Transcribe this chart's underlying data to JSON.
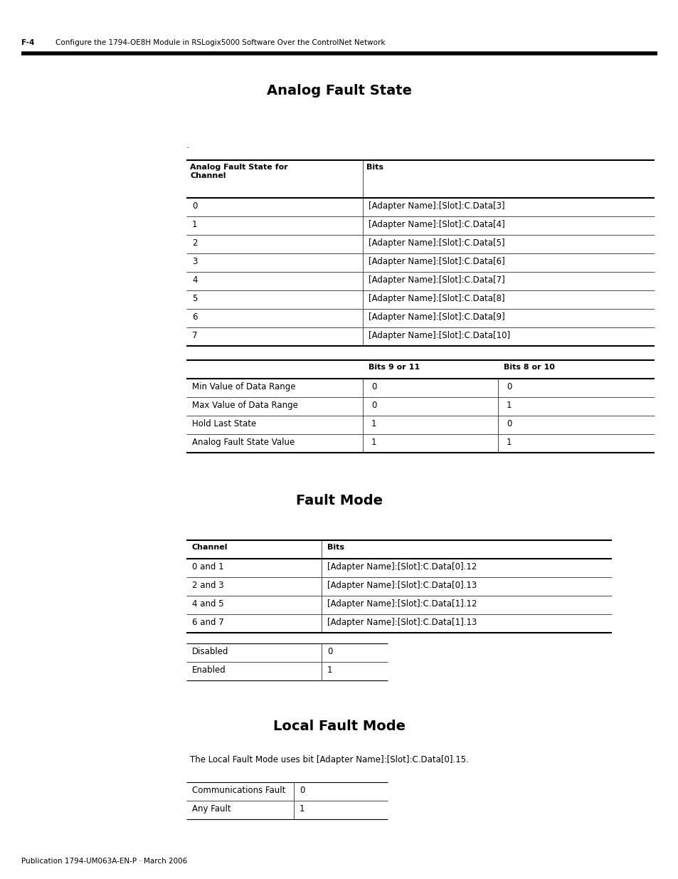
{
  "page_header_left": "F-4",
  "page_header_right": "Configure the 1794-OE8H Module in RSLogix5000 Software Over the ControlNet Network",
  "page_footer": "Publication 1794-UM063A-EN-P · March 2006",
  "section1_title": "Analog Fault State",
  "section1_note": ".",
  "table1_headers": [
    "Analog Fault State for\nChannel",
    "Bits"
  ],
  "table1_rows": [
    [
      "0",
      "[Adapter Name]:[Slot]:C.Data[3]"
    ],
    [
      "1",
      "[Adapter Name]:[Slot]:C.Data[4]"
    ],
    [
      "2",
      "[Adapter Name]:[Slot]:C.Data[5]"
    ],
    [
      "3",
      "[Adapter Name]:[Slot]:C.Data[6]"
    ],
    [
      "4",
      "[Adapter Name]:[Slot]:C.Data[7]"
    ],
    [
      "5",
      "[Adapter Name]:[Slot]:C.Data[8]"
    ],
    [
      "6",
      "[Adapter Name]:[Slot]:C.Data[9]"
    ],
    [
      "7",
      "[Adapter Name]:[Slot]:C.Data[10]"
    ]
  ],
  "table2_headers": [
    "",
    "Bits 9 or 11",
    "Bits 8 or 10"
  ],
  "table2_rows": [
    [
      "Min Value of Data Range",
      "0",
      "0"
    ],
    [
      "Max Value of Data Range",
      "0",
      "1"
    ],
    [
      "Hold Last State",
      "1",
      "0"
    ],
    [
      "Analog Fault State Value",
      "1",
      "1"
    ]
  ],
  "section2_title": "Fault Mode",
  "table3_headers": [
    "Channel",
    "Bits"
  ],
  "table3_rows": [
    [
      "0 and 1",
      "[Adapter Name]:[Slot]:C.Data[0].12"
    ],
    [
      "2 and 3",
      "[Adapter Name]:[Slot]:C.Data[0].13"
    ],
    [
      "4 and 5",
      "[Adapter Name]:[Slot]:C.Data[1].12"
    ],
    [
      "6 and 7",
      "[Adapter Name]:[Slot]:C.Data[1].13"
    ]
  ],
  "table4_rows": [
    [
      "Disabled",
      "0"
    ],
    [
      "Enabled",
      "1"
    ]
  ],
  "section3_title": "Local Fault Mode",
  "section3_text": "The Local Fault Mode uses bit [Adapter Name]:[Slot]:C.Data[0].15.",
  "table5_rows": [
    [
      "Communications Fault",
      "0"
    ],
    [
      "Any Fault",
      "1"
    ]
  ],
  "bg_color": "#ffffff",
  "dpi": 100,
  "fig_w": 9.54,
  "fig_h": 12.35
}
